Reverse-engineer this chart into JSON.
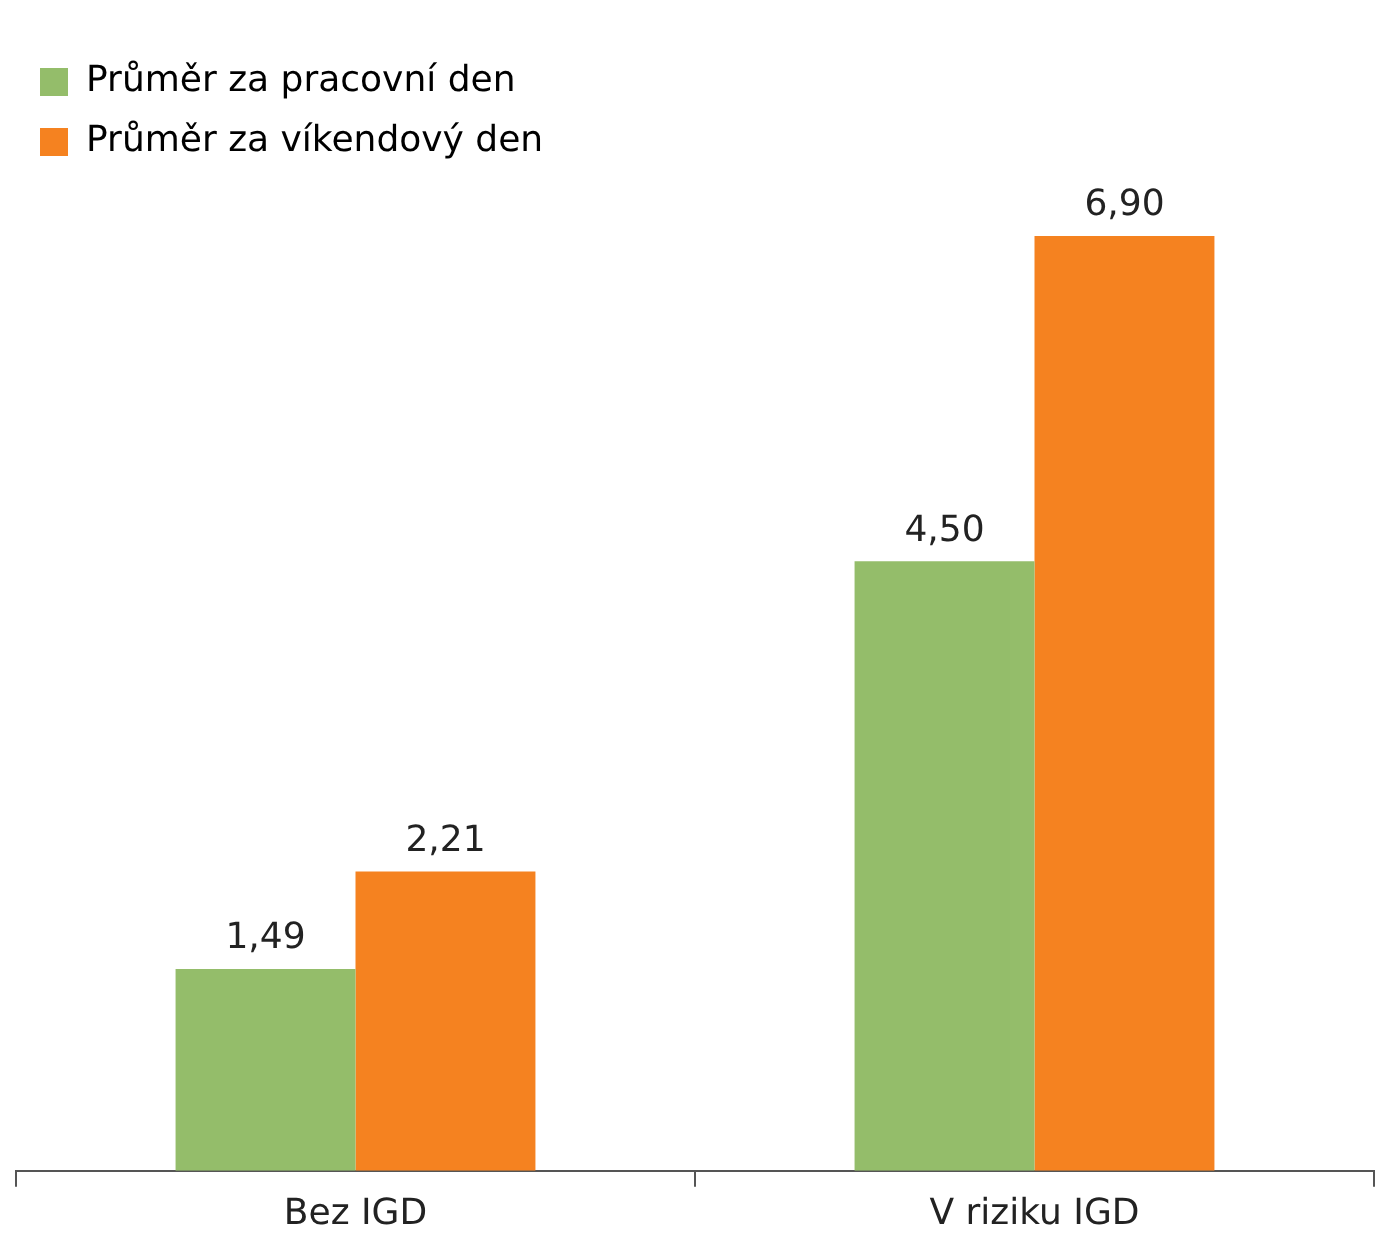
{
  "chart_data": {
    "type": "bar",
    "categories": [
      "Bez IGD",
      "V riziku IGD"
    ],
    "series": [
      {
        "name": "Průměr za pracovní den",
        "color": "#94bd6a",
        "values": [
          1.49,
          4.5
        ],
        "value_labels": [
          "1,49",
          "4,50"
        ]
      },
      {
        "name": "Průměr za víkendový den",
        "color": "#f58220",
        "values": [
          2.21,
          6.9
        ],
        "value_labels": [
          "2,21",
          "6,90"
        ]
      }
    ],
    "grid": false,
    "legend": "top left"
  }
}
